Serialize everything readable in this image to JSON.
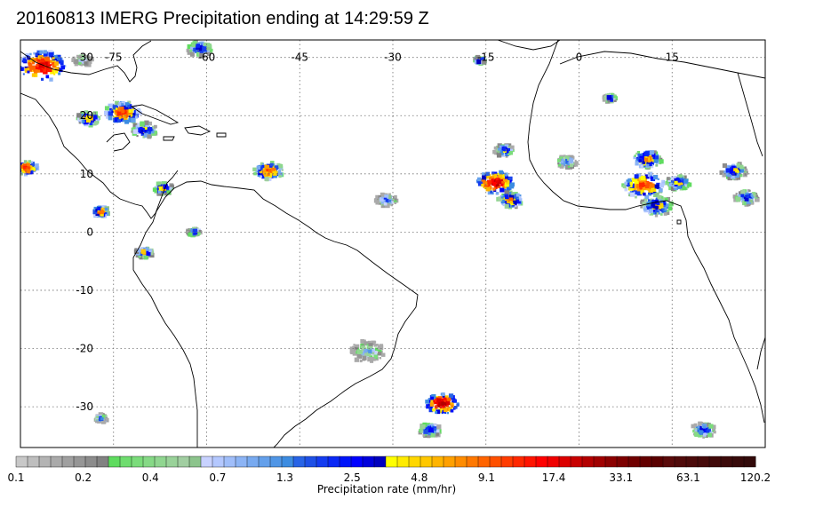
{
  "title": "20160813 IMERG Precipitation ending at 14:29:59 Z",
  "map": {
    "lon_range": [
      -90,
      30
    ],
    "lat_range": [
      -37,
      33
    ],
    "lon_labels": [
      "-75",
      "-60",
      "-45",
      "-30",
      "-15",
      "0",
      "15"
    ],
    "lat_labels": [
      "30",
      "20",
      "10",
      "0",
      "-10",
      "-20",
      "-30"
    ],
    "grid": "dotted",
    "land_outline": "#000000",
    "precip_systems": [
      {
        "lon": -86.5,
        "lat": 28.5,
        "r": 3.0,
        "peak": 20
      },
      {
        "lon": -61,
        "lat": 31.5,
        "r": 1.6,
        "peak": 3
      },
      {
        "lon": -73.5,
        "lat": 20.5,
        "r": 2.2,
        "peak": 12
      },
      {
        "lon": -79,
        "lat": 19.5,
        "r": 1.4,
        "peak": 6
      },
      {
        "lon": -70,
        "lat": 17.5,
        "r": 1.6,
        "peak": 4
      },
      {
        "lon": -89,
        "lat": 11,
        "r": 1.4,
        "peak": 14
      },
      {
        "lon": -67,
        "lat": 7.5,
        "r": 1.2,
        "peak": 5
      },
      {
        "lon": -50,
        "lat": 10.5,
        "r": 1.8,
        "peak": 10
      },
      {
        "lon": -77,
        "lat": 3.5,
        "r": 1.0,
        "peak": 12
      },
      {
        "lon": -70,
        "lat": -3.5,
        "r": 1.1,
        "peak": 5
      },
      {
        "lon": -62,
        "lat": 0,
        "r": 0.8,
        "peak": 3
      },
      {
        "lon": -31,
        "lat": 5.5,
        "r": 1.3,
        "peak": 2
      },
      {
        "lon": -13.5,
        "lat": 8.5,
        "r": 2.2,
        "peak": 25
      },
      {
        "lon": -11,
        "lat": 5.5,
        "r": 1.6,
        "peak": 8
      },
      {
        "lon": -12,
        "lat": 14,
        "r": 1.3,
        "peak": 3
      },
      {
        "lon": -2,
        "lat": 12,
        "r": 1.3,
        "peak": 2
      },
      {
        "lon": 11,
        "lat": 12.5,
        "r": 1.8,
        "peak": 8
      },
      {
        "lon": 10.5,
        "lat": 8,
        "r": 2.6,
        "peak": 12
      },
      {
        "lon": 12.5,
        "lat": 4.5,
        "r": 2.0,
        "peak": 5
      },
      {
        "lon": 16,
        "lat": 8.5,
        "r": 1.5,
        "peak": 5
      },
      {
        "lon": 25,
        "lat": 10.5,
        "r": 1.6,
        "peak": 4
      },
      {
        "lon": 27,
        "lat": 6,
        "r": 1.5,
        "peak": 3
      },
      {
        "lon": 5,
        "lat": 23,
        "r": 0.8,
        "peak": 3
      },
      {
        "lon": -16,
        "lat": 29.5,
        "r": 0.7,
        "peak": 5
      },
      {
        "lon": -22,
        "lat": -29.5,
        "r": 2.0,
        "peak": 30
      },
      {
        "lon": -24,
        "lat": -34,
        "r": 1.4,
        "peak": 3
      },
      {
        "lon": -34,
        "lat": -20.5,
        "r": 2.2,
        "peak": 1
      },
      {
        "lon": 20,
        "lat": -34,
        "r": 1.5,
        "peak": 3
      },
      {
        "lon": -77,
        "lat": -32,
        "r": 0.8,
        "peak": 2
      },
      {
        "lon": -80,
        "lat": 29.5,
        "r": 1.2,
        "peak": 1
      }
    ]
  },
  "colorbar": {
    "title": "Precipitation rate (mm/hr)",
    "labels": [
      "0.1",
      "0.2",
      "0.4",
      "0.7",
      "1.3",
      "2.5",
      "4.8",
      "9.1",
      "17.4",
      "33.1",
      "63.1",
      "120.2"
    ],
    "colors": [
      "#c8c8c8",
      "#bebebe",
      "#b4b4b4",
      "#aaaaaa",
      "#a0a0a0",
      "#969696",
      "#8c8c8c",
      "#828282",
      "#5fdc5f",
      "#6fdd6f",
      "#7bdc7b",
      "#86d986",
      "#90d690",
      "#99d299",
      "#a1cea1",
      "#8cc48c",
      "#c8d2ff",
      "#b4c8ff",
      "#a0befa",
      "#8cb4f5",
      "#78aaf0",
      "#64a0eb",
      "#5096e6",
      "#3c8ce1",
      "#2864e6",
      "#1e50e6",
      "#143cf0",
      "#0a28f5",
      "#0014fa",
      "#0000ff",
      "#0000dc",
      "#0000be",
      "#ffff00",
      "#ffeb00",
      "#ffd700",
      "#ffc800",
      "#ffb400",
      "#ffa000",
      "#ff8c00",
      "#ff7800",
      "#ff6400",
      "#ff5000",
      "#ff3c00",
      "#ff2800",
      "#ff1400",
      "#ff0000",
      "#f00000",
      "#dc0000",
      "#c80000",
      "#b40000",
      "#a00000",
      "#8c0000",
      "#7d0000",
      "#700000",
      "#640000",
      "#5a0000",
      "#5a0a0a",
      "#500a0a",
      "#4b0a0a",
      "#460a0a",
      "#410a0a",
      "#3c0a0a",
      "#370a0a",
      "#320a0a"
    ]
  }
}
